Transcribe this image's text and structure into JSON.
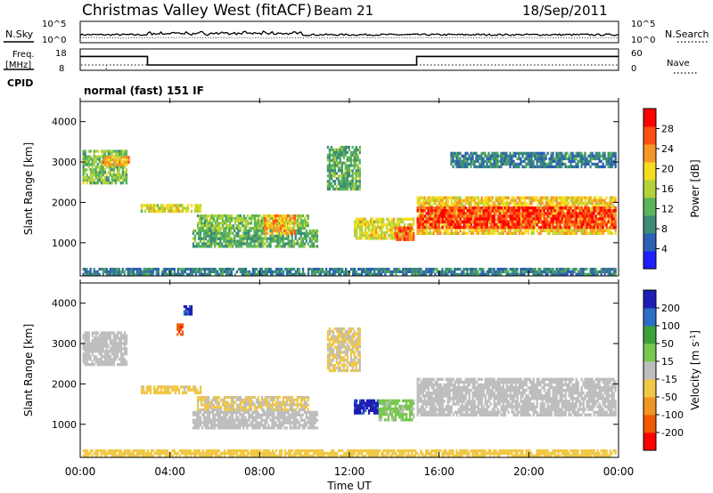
{
  "header": {
    "title": "Christmas Valley West (fitACF)",
    "beam": "Beam 21",
    "date": "18/Sep/2011"
  },
  "noise_panel": {
    "left_label": "N.Sky",
    "right_label": "N.Search",
    "left_ticks": [
      "10^5",
      "10^0"
    ],
    "right_ticks": [
      "10^5",
      "10^0"
    ]
  },
  "freq_panel": {
    "left_label_top": "Freq.",
    "left_label_bottom": "[MHz]",
    "right_label": "Nave",
    "left_ticks": [
      "18",
      "8"
    ],
    "right_ticks": [
      "60",
      "0"
    ],
    "cpid_label": "CPID",
    "mode_text": "normal (fast) 151 IF",
    "steps": [
      {
        "t": 0,
        "freq": 14.5
      },
      {
        "t": 3,
        "freq": 10.5
      },
      {
        "t": 15,
        "freq": 14.5
      },
      {
        "t": 24,
        "freq": 14.5
      }
    ]
  },
  "chart_data": [
    {
      "type": "heatmap",
      "name": "power",
      "ylabel": "Slant Range [km]",
      "xlabel": "Time UT",
      "x_ticks": [
        "00:00",
        "04:00",
        "08:00",
        "12:00",
        "16:00",
        "20:00",
        "00:00"
      ],
      "x_range_hours": [
        0,
        24
      ],
      "y_ticks": [
        1000,
        2000,
        3000,
        4000
      ],
      "y_range_km": [
        180,
        4500
      ],
      "colorbar": {
        "label": "Power [dB]",
        "ticks": [
          "28",
          "24",
          "20",
          "16",
          "12",
          "8",
          "4"
        ],
        "range": [
          0,
          32
        ],
        "colors": [
          "#1e1eff",
          "#2d5fb4",
          "#3c8c78",
          "#5ab45a",
          "#b4d23c",
          "#f5dc1e",
          "#f59628",
          "#ff5014",
          "#ff0000"
        ]
      },
      "regions": [
        {
          "t0": 0.1,
          "t1": 2.1,
          "r0": 2450,
          "r1": 3300,
          "val": 14
        },
        {
          "t0": 1.0,
          "t1": 2.2,
          "r0": 2900,
          "r1": 3150,
          "val": 22
        },
        {
          "t0": 2.7,
          "t1": 5.4,
          "r0": 1750,
          "r1": 1960,
          "val": 18
        },
        {
          "t0": 5.2,
          "t1": 10.2,
          "r0": 1330,
          "r1": 1700,
          "val": 14
        },
        {
          "t0": 5.0,
          "t1": 10.6,
          "r0": 880,
          "r1": 1330,
          "val": 12
        },
        {
          "t0": 8.2,
          "t1": 9.6,
          "r0": 1200,
          "r1": 1700,
          "val": 22
        },
        {
          "t0": 12.2,
          "t1": 14.9,
          "r0": 1080,
          "r1": 1620,
          "val": 18
        },
        {
          "t0": 14.0,
          "t1": 14.9,
          "r0": 1050,
          "r1": 1400,
          "val": 26
        },
        {
          "t0": 15.0,
          "t1": 23.9,
          "r0": 1200,
          "r1": 2150,
          "val": 20
        },
        {
          "t0": 15.0,
          "t1": 23.9,
          "r0": 1350,
          "r1": 1900,
          "val": 28
        },
        {
          "t0": 0.1,
          "t1": 23.9,
          "r0": 190,
          "r1": 380,
          "val": 8
        },
        {
          "t0": 16.5,
          "t1": 23.9,
          "r0": 2850,
          "r1": 3250,
          "val": 8
        },
        {
          "t0": 11.0,
          "t1": 12.5,
          "r0": 2300,
          "r1": 3400,
          "val": 12
        }
      ]
    },
    {
      "type": "heatmap",
      "name": "velocity",
      "ylabel": "Slant Range [km]",
      "xlabel": "Time UT",
      "x_ticks": [
        "00:00",
        "04:00",
        "08:00",
        "12:00",
        "16:00",
        "20:00",
        "00:00"
      ],
      "x_range_hours": [
        0,
        24
      ],
      "y_ticks": [
        1000,
        2000,
        3000,
        4000
      ],
      "y_range_km": [
        180,
        4500
      ],
      "colorbar": {
        "label_prefix": "Velocity [m s",
        "label_sup": "-1",
        "label_suffix": "]",
        "ticks": [
          "200",
          "100",
          "50",
          "15",
          "-15",
          "-50",
          "-100",
          "-200"
        ],
        "range": [
          -250,
          250
        ],
        "colors": [
          "#ff0000",
          "#f05a00",
          "#f09628",
          "#f0c846",
          "#bebebe",
          "#78c850",
          "#3ca03c",
          "#2d6ec8",
          "#1e1eb4"
        ]
      },
      "regions": [
        {
          "t0": 0.1,
          "t1": 2.1,
          "r0": 2450,
          "r1": 3300,
          "val": 0
        },
        {
          "t0": 2.7,
          "t1": 5.4,
          "r0": 1750,
          "r1": 1960,
          "val": -40
        },
        {
          "t0": 5.2,
          "t1": 10.2,
          "r0": 1330,
          "r1": 1700,
          "val": -30
        },
        {
          "t0": 5.0,
          "t1": 10.6,
          "r0": 880,
          "r1": 1330,
          "val": 0
        },
        {
          "t0": 12.2,
          "t1": 13.3,
          "r0": 1250,
          "r1": 1620,
          "val": 210
        },
        {
          "t0": 13.3,
          "t1": 14.9,
          "r0": 1080,
          "r1": 1620,
          "val": 40
        },
        {
          "t0": 15.0,
          "t1": 23.9,
          "r0": 1200,
          "r1": 2150,
          "val": 0
        },
        {
          "t0": 0.1,
          "t1": 23.9,
          "r0": 190,
          "r1": 380,
          "val": -60
        },
        {
          "t0": 4.6,
          "t1": 5.0,
          "r0": 3700,
          "r1": 3950,
          "val": 200
        },
        {
          "t0": 4.3,
          "t1": 4.6,
          "r0": 3200,
          "r1": 3500,
          "val": -180
        },
        {
          "t0": 11.0,
          "t1": 12.5,
          "r0": 2300,
          "r1": 3400,
          "val": -30
        }
      ]
    }
  ]
}
